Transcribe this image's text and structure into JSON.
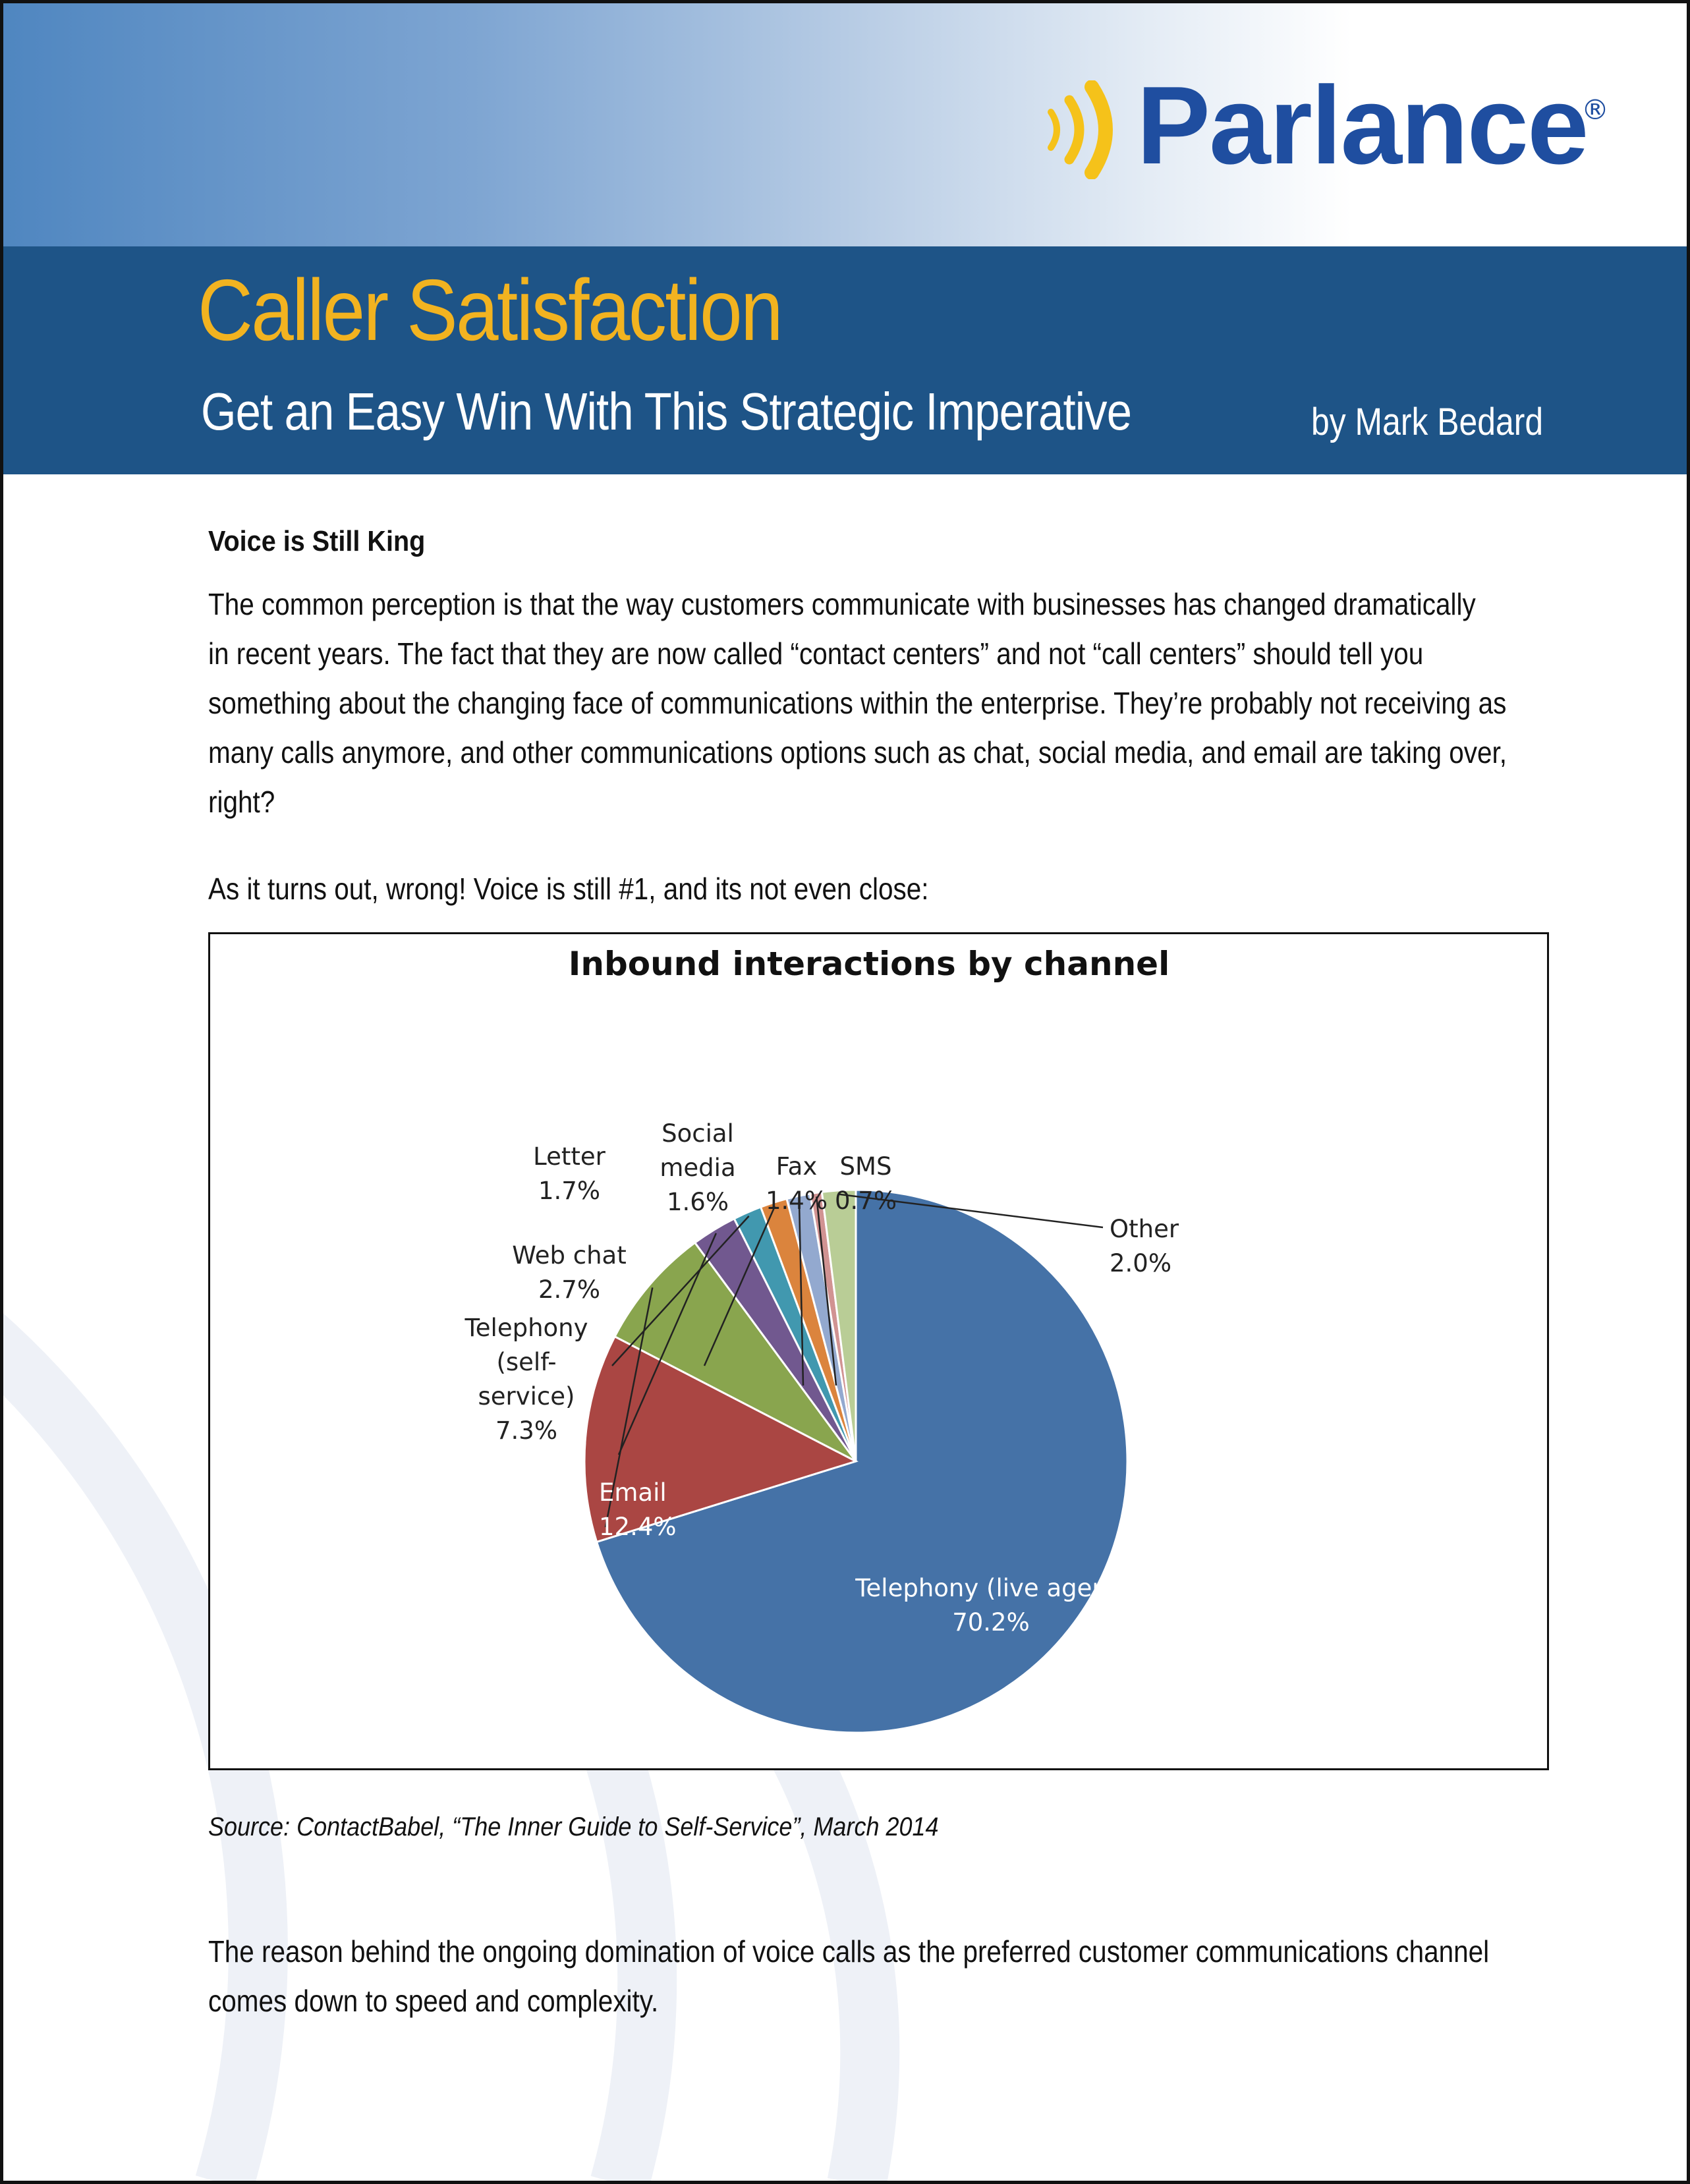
{
  "header": {
    "logo_text": "Parlance",
    "logo_registered": "®",
    "title": "Caller Satisfaction",
    "subtitle": "Get an Easy Win With This Strategic Imperative",
    "byline": "by Mark Bedard"
  },
  "body": {
    "section_heading": "Voice is Still King",
    "paragraph_1": "The common perception is that the way customers communicate with businesses has changed dramatically in recent years. The fact that they are now called “contact centers” and not “call centers” should tell you something about the changing face of communications within the enterprise. They’re probably not receiving as many calls anymore, and other communications options such as chat, social media, and email are taking over, right?",
    "paragraph_1_lines": [
      "The common perception is that the way customers communicate with businesses has changed dramatically",
      "in recent years. The fact that they are now called “contact centers” and not “call centers” should tell you",
      "something about the changing face of communications within the enterprise. They’re probably not receiving as",
      "many calls anymore, and other communications options such as chat, social media, and email are taking over,",
      "right?"
    ],
    "paragraph_2": "As it turns out, wrong! Voice is still #1, and its not even close:",
    "source": "Source: ContactBabel, “The Inner Guide to Self-Service”, March 2014",
    "paragraph_3_lines": [
      "The reason behind the ongoing domination of voice calls as the preferred customer communications channel",
      "comes down to speed and complexity."
    ]
  },
  "chart_data": {
    "type": "pie",
    "title": "Inbound interactions by channel",
    "unit": "%",
    "slices": [
      {
        "name": "Telephony (live agent)",
        "label_lines": [
          "Telephony (live agent)",
          "70.2%"
        ],
        "value": 70.2,
        "color": "#4572a7"
      },
      {
        "name": "Email",
        "label_lines": [
          "Email",
          "12.4%"
        ],
        "value": 12.4,
        "color": "#aa4643"
      },
      {
        "name": "Telephony (self-service)",
        "label_lines": [
          "Telephony",
          "(self-",
          "service)",
          "7.3%"
        ],
        "value": 7.3,
        "color": "#89a54e"
      },
      {
        "name": "Web chat",
        "label_lines": [
          "Web chat",
          "2.7%"
        ],
        "value": 2.7,
        "color": "#71588f"
      },
      {
        "name": "Letter",
        "label_lines": [
          "Letter",
          "1.7%"
        ],
        "value": 1.7,
        "color": "#4198af"
      },
      {
        "name": "Social media",
        "label_lines": [
          "Social",
          "media",
          "1.6%"
        ],
        "value": 1.6,
        "color": "#db843d"
      },
      {
        "name": "Fax",
        "label_lines": [
          "Fax",
          "1.4%"
        ],
        "value": 1.4,
        "color": "#93a9cf"
      },
      {
        "name": "SMS",
        "label_lines": [
          "SMS",
          "0.7%"
        ],
        "value": 0.7,
        "color": "#d19392"
      },
      {
        "name": "Other",
        "label_lines": [
          "Other",
          "2.0%"
        ],
        "value": 2.0,
        "color": "#b9cd96"
      }
    ]
  },
  "colors": {
    "header_band": "#1e5487",
    "title_accent": "#f2b320",
    "logo_blue": "#1f4ea0",
    "logo_yellow": "#f5c21a"
  }
}
